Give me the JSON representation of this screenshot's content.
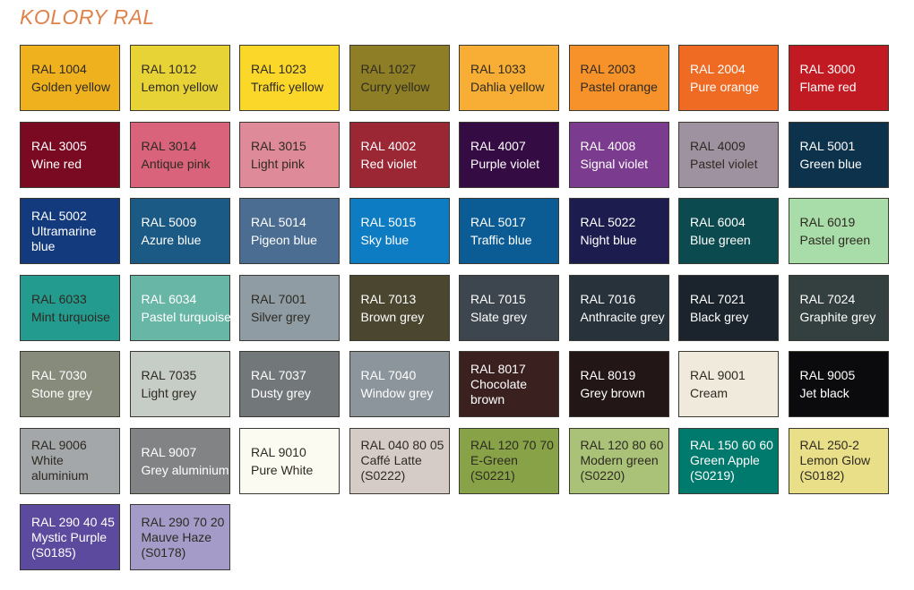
{
  "title": "KOLORY RAL",
  "swatches": [
    {
      "lines": [
        "RAL 1004",
        "Golden yellow"
      ],
      "color": "#efb21e",
      "text": "dark"
    },
    {
      "lines": [
        "RAL 1012",
        "Lemon yellow"
      ],
      "color": "#e8d337",
      "text": "dark"
    },
    {
      "lines": [
        "RAL 1023",
        "Traffic yellow"
      ],
      "color": "#fbd72a",
      "text": "dark"
    },
    {
      "lines": [
        "RAL 1027",
        "Curry yellow"
      ],
      "color": "#8e7f26",
      "text": "dark"
    },
    {
      "lines": [
        "RAL 1033",
        "Dahlia yellow"
      ],
      "color": "#f8ae34",
      "text": "dark"
    },
    {
      "lines": [
        "RAL 2003",
        "Pastel orange"
      ],
      "color": "#f69229",
      "text": "dark"
    },
    {
      "lines": [
        "RAL 2004",
        "Pure orange"
      ],
      "color": "#ef6a22",
      "text": "light"
    },
    {
      "lines": [
        "RAL 3000",
        "Flame red"
      ],
      "color": "#c21a22",
      "text": "light"
    },
    {
      "lines": [
        "RAL 3005",
        "Wine red"
      ],
      "color": "#7a0a22",
      "text": "light"
    },
    {
      "lines": [
        "RAL 3014",
        "Antique pink"
      ],
      "color": "#d8637a",
      "text": "dark"
    },
    {
      "lines": [
        "RAL 3015",
        "Light pink"
      ],
      "color": "#de8a98",
      "text": "dark"
    },
    {
      "lines": [
        "RAL 4002",
        "Red violet"
      ],
      "color": "#9b2634",
      "text": "light"
    },
    {
      "lines": [
        "RAL 4007",
        "Purple violet"
      ],
      "color": "#350b43",
      "text": "light"
    },
    {
      "lines": [
        "RAL 4008",
        "Signal violet"
      ],
      "color": "#7b3b8f",
      "text": "light"
    },
    {
      "lines": [
        "RAL 4009",
        "Pastel violet"
      ],
      "color": "#9f92a0",
      "text": "dark"
    },
    {
      "lines": [
        "RAL 5001",
        "Green blue"
      ],
      "color": "#0d324c",
      "text": "light"
    },
    {
      "lines": [
        "RAL 5002",
        "Ultramarine",
        "blue"
      ],
      "color": "#123a7d",
      "text": "light"
    },
    {
      "lines": [
        "RAL 5009",
        "Azure blue"
      ],
      "color": "#1a5a84",
      "text": "light"
    },
    {
      "lines": [
        "RAL 5014",
        "Pigeon blue"
      ],
      "color": "#4b6d92",
      "text": "light"
    },
    {
      "lines": [
        "RAL 5015",
        "Sky blue"
      ],
      "color": "#0e7cc2",
      "text": "light"
    },
    {
      "lines": [
        "RAL 5017",
        "Traffic blue"
      ],
      "color": "#0b5c94",
      "text": "light"
    },
    {
      "lines": [
        "RAL 5022",
        "Night blue"
      ],
      "color": "#1c1c4e",
      "text": "light"
    },
    {
      "lines": [
        "RAL 6004",
        "Blue green"
      ],
      "color": "#0b4a4e",
      "text": "light"
    },
    {
      "lines": [
        "RAL 6019",
        "Pastel green"
      ],
      "color": "#a8dca8",
      "text": "dark"
    },
    {
      "lines": [
        "RAL 6033",
        "Mint turquoise"
      ],
      "color": "#239b8e",
      "text": "dark"
    },
    {
      "lines": [
        "RAL 6034",
        "Pastel turquoise"
      ],
      "color": "#68b6a6",
      "text": "light"
    },
    {
      "lines": [
        "RAL 7001",
        "Silver grey"
      ],
      "color": "#8f9ca4",
      "text": "dark"
    },
    {
      "lines": [
        "RAL 7013",
        "Brown grey"
      ],
      "color": "#4b462f",
      "text": "light"
    },
    {
      "lines": [
        "RAL 7015",
        "Slate grey"
      ],
      "color": "#3d454e",
      "text": "light"
    },
    {
      "lines": [
        "RAL 7016",
        "Anthracite grey"
      ],
      "color": "#28323a",
      "text": "light"
    },
    {
      "lines": [
        "RAL 7021",
        "Black grey"
      ],
      "color": "#1b242c",
      "text": "light"
    },
    {
      "lines": [
        "RAL 7024",
        "Graphite grey"
      ],
      "color": "#33403f",
      "text": "light"
    },
    {
      "lines": [
        "RAL 7030",
        "Stone grey"
      ],
      "color": "#878b7c",
      "text": "light"
    },
    {
      "lines": [
        "RAL 7035",
        "Light grey"
      ],
      "color": "#c6ccc6",
      "text": "dark"
    },
    {
      "lines": [
        "RAL 7037",
        "Dusty grey"
      ],
      "color": "#727779",
      "text": "light"
    },
    {
      "lines": [
        "RAL 7040",
        "Window grey"
      ],
      "color": "#8b959b",
      "text": "light"
    },
    {
      "lines": [
        "RAL 8017",
        "Chocolate",
        "brown"
      ],
      "color": "#3b2020",
      "text": "light"
    },
    {
      "lines": [
        "RAL 8019",
        "Grey brown"
      ],
      "color": "#221617",
      "text": "light"
    },
    {
      "lines": [
        "RAL 9001",
        "Cream"
      ],
      "color": "#efeadb",
      "text": "dark"
    },
    {
      "lines": [
        "RAL 9005",
        "Jet black"
      ],
      "color": "#0b0b0d",
      "text": "light"
    },
    {
      "lines": [
        "RAL 9006",
        "White",
        "aluminium"
      ],
      "color": "#a4a7a9",
      "text": "dark"
    },
    {
      "lines": [
        "RAL 9007",
        "Grey aluminium"
      ],
      "color": "#818384",
      "text": "light"
    },
    {
      "lines": [
        "RAL 9010",
        "Pure White"
      ],
      "color": "#fcfbf2",
      "text": "dark"
    },
    {
      "lines": [
        "RAL 040 80 05",
        "Caffé Latte",
        "(S0222)"
      ],
      "color": "#d5cbc7",
      "text": "dark"
    },
    {
      "lines": [
        "RAL 120 70 70",
        "E-Green",
        "(S0221)"
      ],
      "color": "#88a347",
      "text": "dark"
    },
    {
      "lines": [
        "RAL 120 80 60",
        "Modern green",
        "(S0220)"
      ],
      "color": "#a9c277",
      "text": "dark"
    },
    {
      "lines": [
        "RAL 150 60 60",
        "Green Apple",
        "(S0219)"
      ],
      "color": "#007a6c",
      "text": "light"
    },
    {
      "lines": [
        "RAL 250-2",
        "Lemon Glow",
        "(S0182)"
      ],
      "color": "#e8df88",
      "text": "dark"
    },
    {
      "lines": [
        "RAL 290 40 45",
        "Mystic Purple",
        "(S0185)"
      ],
      "color": "#5b4a9e",
      "text": "light"
    },
    {
      "lines": [
        "RAL 290 70 20",
        "Mauve Haze",
        "(S0178)"
      ],
      "color": "#a59bc8",
      "text": "dark"
    }
  ],
  "text_colors": {
    "dark": "#2e2a22",
    "light": "#ffffff"
  }
}
